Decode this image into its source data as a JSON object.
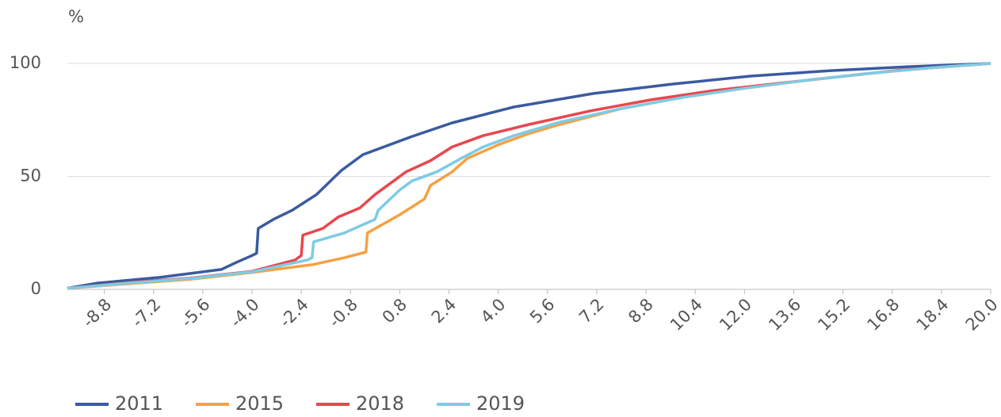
{
  "chart_data": {
    "type": "line",
    "y_label": "%",
    "xlim": [
      -10,
      20
    ],
    "ylim": [
      0,
      100
    ],
    "yticks": [
      0,
      50,
      100
    ],
    "grid": true,
    "legend": "bottom",
    "xticks": [
      -8.8,
      -7.2,
      -5.6,
      {
        "value": -4,
        "label": "-4.0"
      },
      -2.4,
      -0.8,
      0.8,
      2.4,
      {
        "value": 4,
        "label": "4.0"
      },
      5.6,
      7.2,
      8.8,
      10.4,
      {
        "value": 12,
        "label": "12.0"
      },
      13.6,
      15.2,
      16.8,
      18.4,
      {
        "value": 20,
        "label": "20.0"
      }
    ],
    "series": [
      {
        "name": "2011",
        "color": "#3b5aa0",
        "x": [
          -10,
          -9,
          -7,
          -5,
          -4.5,
          -4,
          -3.85,
          -3.8,
          -3.3,
          -2.7,
          -1.9,
          -1.1,
          -0.4,
          1.2,
          2.5,
          4.5,
          7.1,
          9.7,
          12.2,
          14.8,
          17.4,
          20
        ],
        "values": [
          0.5,
          2.8,
          5.3,
          8.8,
          12,
          15,
          16,
          27,
          31,
          35,
          42,
          52.6,
          59.6,
          67.7,
          73.7,
          80.7,
          86.7,
          90.9,
          94.4,
          96.8,
          98.6,
          100
        ]
      },
      {
        "name": "2015",
        "color": "#f5a142",
        "x": [
          -10,
          -8,
          -6,
          -4,
          -2,
          -1,
          -0.3,
          -0.25,
          0.8,
          1.6,
          1.8,
          2.5,
          3,
          4,
          5,
          6,
          8,
          10,
          12,
          14,
          16,
          18,
          20
        ],
        "values": [
          0.5,
          2.5,
          4.5,
          7.5,
          11,
          14,
          16.5,
          25,
          33,
          40,
          46,
          52,
          58,
          64,
          69,
          73,
          80,
          85,
          89,
          92.5,
          95.5,
          98,
          100
        ]
      },
      {
        "name": "2018",
        "color": "#e8474f",
        "x": [
          -10,
          -8,
          -6,
          -4,
          -2.6,
          -2.4,
          -2.35,
          -1.7,
          -1.2,
          -0.5,
          0,
          0.5,
          1,
          1.8,
          2.5,
          3.5,
          5,
          7,
          9,
          11,
          13,
          15,
          17,
          20
        ],
        "values": [
          0.5,
          3,
          5,
          8,
          13,
          15,
          24,
          27,
          32,
          36,
          42,
          47,
          52,
          57,
          63,
          68,
          73,
          79,
          84,
          88,
          91,
          94,
          97,
          100
        ]
      },
      {
        "name": "2019",
        "color": "#7ecbe4",
        "x": [
          -10,
          -8,
          -6,
          -4,
          -2.2,
          -2.05,
          -2,
          -1,
          0,
          0.1,
          0.8,
          1.2,
          2,
          2.8,
          3.5,
          4.5,
          6,
          8,
          10,
          12,
          14,
          16,
          18,
          20
        ],
        "values": [
          0.5,
          2.8,
          4.8,
          7.8,
          13,
          14,
          21,
          25,
          31,
          35,
          44,
          48,
          52,
          58,
          63,
          68,
          74,
          80,
          85,
          89,
          92.5,
          95.5,
          98,
          100
        ]
      }
    ]
  }
}
